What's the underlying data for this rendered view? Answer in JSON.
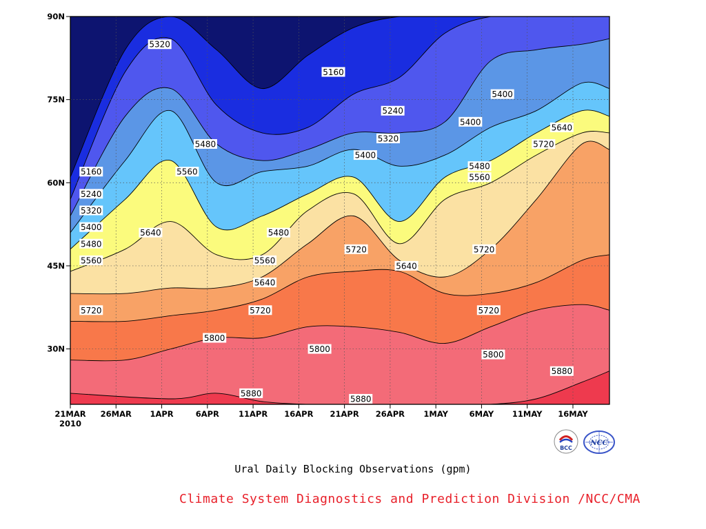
{
  "chart_data": {
    "type": "heatmap",
    "subtype": "filled-contour",
    "title": "Ural Daily Blocking Observations (gpm)",
    "footer": "Climate System Diagnostics and Prediction Division /NCC/CMA",
    "x_tick_labels": [
      "21MAR",
      "26MAR",
      "1APR",
      "6APR",
      "11APR",
      "16APR",
      "21APR",
      "26APR",
      "1MAY",
      "6MAY",
      "11MAY",
      "16MAY"
    ],
    "x_year_label": "2010",
    "x_range": [
      "2010-03-21",
      "2010-05-19"
    ],
    "y_tick_labels": [
      "30N",
      "45N",
      "60N",
      "75N",
      "90N"
    ],
    "y_ticks": [
      30,
      45,
      60,
      75,
      90
    ],
    "ylim": [
      20,
      90
    ],
    "grid": true,
    "grid_style": "dotted",
    "contour_levels": [
      5160,
      5240,
      5320,
      5400,
      5480,
      5560,
      5640,
      5720,
      5800,
      5880
    ],
    "level_colors": [
      "#0d1470",
      "#1a2de0",
      "#4f57ee",
      "#5b96e6",
      "#65c5fb",
      "#fbfb7d",
      "#fbe1a3",
      "#f8a266",
      "#f8784a",
      "#f36b78",
      "#ee3a4e"
    ],
    "series": [
      {
        "level": 5880,
        "boundary": [
          [
            0,
            22
          ],
          [
            11,
            21
          ],
          [
            16,
            22
          ],
          [
            21,
            20.5
          ],
          [
            26,
            20
          ],
          [
            31,
            20
          ],
          [
            36,
            20
          ],
          [
            41,
            20
          ],
          [
            46,
            20
          ],
          [
            51,
            21
          ],
          [
            56,
            24
          ],
          [
            59,
            26
          ]
        ]
      },
      {
        "level": 5800,
        "boundary": [
          [
            0,
            28
          ],
          [
            6,
            28
          ],
          [
            11,
            30
          ],
          [
            16,
            32
          ],
          [
            21,
            32
          ],
          [
            26,
            34
          ],
          [
            31,
            34
          ],
          [
            36,
            33
          ],
          [
            41,
            31
          ],
          [
            46,
            34
          ],
          [
            51,
            37
          ],
          [
            56,
            38
          ],
          [
            59,
            37
          ]
        ]
      },
      {
        "level": 5720,
        "boundary": [
          [
            0,
            35
          ],
          [
            6,
            35
          ],
          [
            11,
            36
          ],
          [
            16,
            37
          ],
          [
            21,
            39
          ],
          [
            26,
            43
          ],
          [
            31,
            44
          ],
          [
            36,
            44
          ],
          [
            41,
            40
          ],
          [
            46,
            40
          ],
          [
            51,
            42
          ],
          [
            56,
            46
          ],
          [
            59,
            47
          ]
        ]
      },
      {
        "level": 5640,
        "boundary": [
          [
            0,
            40
          ],
          [
            6,
            40
          ],
          [
            11,
            41
          ],
          [
            16,
            41
          ],
          [
            21,
            43
          ],
          [
            26,
            49
          ],
          [
            31,
            54
          ],
          [
            36,
            46
          ],
          [
            41,
            43
          ],
          [
            46,
            48
          ],
          [
            51,
            57
          ],
          [
            56,
            67
          ],
          [
            59,
            66
          ]
        ]
      },
      {
        "level": 5560,
        "boundary": [
          [
            0,
            44
          ],
          [
            6,
            48
          ],
          [
            11,
            53
          ],
          [
            16,
            47
          ],
          [
            21,
            47
          ],
          [
            26,
            55
          ],
          [
            31,
            58
          ],
          [
            36,
            49
          ],
          [
            41,
            57
          ],
          [
            46,
            60
          ],
          [
            51,
            65
          ],
          [
            56,
            69
          ],
          [
            59,
            69
          ]
        ]
      },
      {
        "level": 5480,
        "boundary": [
          [
            0,
            48
          ],
          [
            6,
            57
          ],
          [
            11,
            64
          ],
          [
            16,
            52
          ],
          [
            21,
            54
          ],
          [
            26,
            58
          ],
          [
            31,
            61
          ],
          [
            36,
            53
          ],
          [
            41,
            61
          ],
          [
            46,
            64
          ],
          [
            51,
            69
          ],
          [
            56,
            73
          ],
          [
            59,
            72
          ]
        ]
      },
      {
        "level": 5400,
        "boundary": [
          [
            0,
            51
          ],
          [
            6,
            64
          ],
          [
            11,
            73
          ],
          [
            16,
            60
          ],
          [
            21,
            62
          ],
          [
            26,
            63
          ],
          [
            31,
            66
          ],
          [
            36,
            63
          ],
          [
            41,
            65
          ],
          [
            46,
            70
          ],
          [
            51,
            73
          ],
          [
            56,
            78
          ],
          [
            59,
            77
          ]
        ]
      },
      {
        "level": 5320,
        "boundary": [
          [
            0,
            54
          ],
          [
            6,
            72
          ],
          [
            11,
            77
          ],
          [
            16,
            67
          ],
          [
            21,
            64
          ],
          [
            26,
            66
          ],
          [
            31,
            69
          ],
          [
            36,
            69
          ],
          [
            41,
            71
          ],
          [
            46,
            82
          ],
          [
            51,
            84
          ],
          [
            56,
            85
          ],
          [
            59,
            86
          ]
        ]
      },
      {
        "level": 5240,
        "boundary": [
          [
            0,
            57
          ],
          [
            6,
            80
          ],
          [
            11,
            86
          ],
          [
            16,
            74
          ],
          [
            21,
            69
          ],
          [
            26,
            70
          ],
          [
            31,
            76
          ],
          [
            36,
            79
          ],
          [
            41,
            87
          ],
          [
            46,
            90
          ],
          [
            51,
            90
          ],
          [
            56,
            90
          ],
          [
            59,
            90
          ]
        ]
      },
      {
        "level": 5160,
        "boundary": [
          [
            0,
            61
          ],
          [
            6,
            84
          ],
          [
            11,
            90
          ],
          [
            16,
            84
          ],
          [
            21,
            77
          ],
          [
            26,
            83
          ],
          [
            31,
            88
          ],
          [
            36,
            90
          ],
          [
            41,
            90
          ],
          [
            46,
            90
          ],
          [
            51,
            90
          ],
          [
            56,
            90
          ],
          [
            59,
            90
          ]
        ]
      }
    ],
    "contour_labels": [
      {
        "text": "5160",
        "x": 1.0,
        "y": 62
      },
      {
        "text": "5240",
        "x": 1.0,
        "y": 58
      },
      {
        "text": "5320",
        "x": 1.0,
        "y": 55
      },
      {
        "text": "5400",
        "x": 1.0,
        "y": 52
      },
      {
        "text": "5480",
        "x": 1.0,
        "y": 49
      },
      {
        "text": "5560",
        "x": 1.0,
        "y": 46
      },
      {
        "text": "5720",
        "x": 1.0,
        "y": 37
      },
      {
        "text": "5640",
        "x": 7.5,
        "y": 51
      },
      {
        "text": "5320",
        "x": 8.5,
        "y": 85
      },
      {
        "text": "5560",
        "x": 11.5,
        "y": 62
      },
      {
        "text": "5480",
        "x": 13.5,
        "y": 67
      },
      {
        "text": "5800",
        "x": 14.5,
        "y": 32
      },
      {
        "text": "5880",
        "x": 18.5,
        "y": 22
      },
      {
        "text": "5480",
        "x": 21.5,
        "y": 51
      },
      {
        "text": "5560",
        "x": 20.0,
        "y": 46
      },
      {
        "text": "5640",
        "x": 20.0,
        "y": 42
      },
      {
        "text": "5720",
        "x": 19.5,
        "y": 37
      },
      {
        "text": "5160",
        "x": 27.5,
        "y": 80
      },
      {
        "text": "5800",
        "x": 26.0,
        "y": 30
      },
      {
        "text": "5720",
        "x": 30.0,
        "y": 48
      },
      {
        "text": "5880",
        "x": 30.5,
        "y": 21
      },
      {
        "text": "5400",
        "x": 31.0,
        "y": 65
      },
      {
        "text": "5320",
        "x": 33.5,
        "y": 68
      },
      {
        "text": "5240",
        "x": 34.0,
        "y": 73
      },
      {
        "text": "5640",
        "x": 35.5,
        "y": 45
      },
      {
        "text": "5400",
        "x": 42.5,
        "y": 71
      },
      {
        "text": "5480",
        "x": 43.5,
        "y": 63
      },
      {
        "text": "5560",
        "x": 43.5,
        "y": 61
      },
      {
        "text": "5720",
        "x": 44.0,
        "y": 48
      },
      {
        "text": "5720",
        "x": 44.5,
        "y": 37
      },
      {
        "text": "5800",
        "x": 45.0,
        "y": 29
      },
      {
        "text": "5400",
        "x": 46.0,
        "y": 76
      },
      {
        "text": "5720",
        "x": 50.5,
        "y": 67
      },
      {
        "text": "5640",
        "x": 52.5,
        "y": 70
      },
      {
        "text": "5880",
        "x": 52.5,
        "y": 26
      }
    ]
  },
  "logos": {
    "bcc_text": "BCC",
    "ncc_text": "NCC"
  }
}
